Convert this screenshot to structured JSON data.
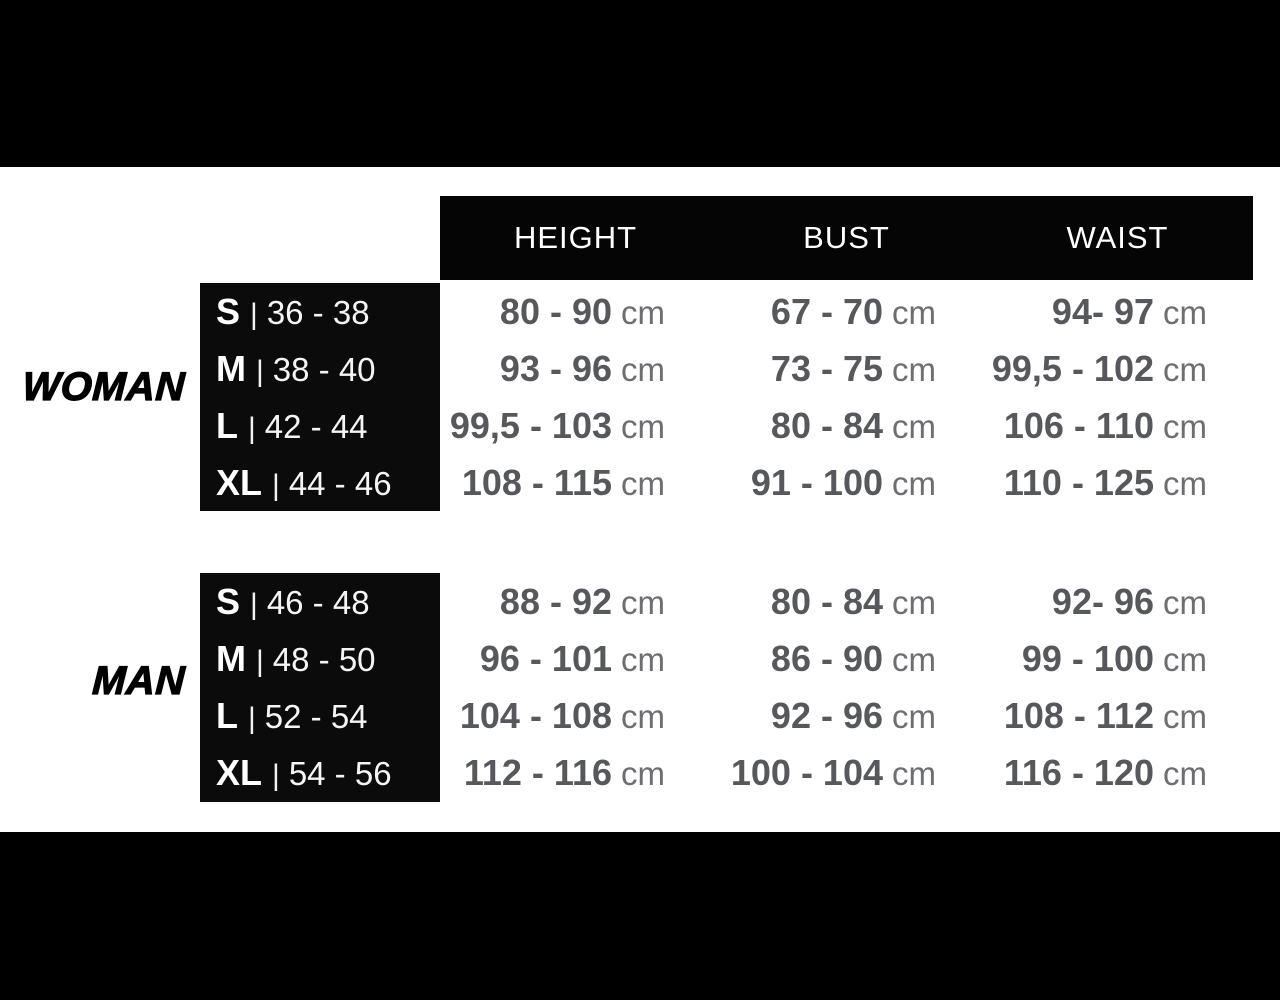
{
  "colors": {
    "bar_black": "#000000",
    "panel_black": "#0b0b0b",
    "value_gray": "#57585b",
    "unit_gray": "#6d6e71",
    "text_white": "#ffffff"
  },
  "separator": "|",
  "chart_data": {
    "type": "table",
    "title": "",
    "columns": [
      "HEIGHT",
      "BUST",
      "WAIST"
    ],
    "unit": "cm",
    "groups": [
      {
        "label": "WOMAN",
        "rows": [
          {
            "size": "S",
            "eu_range": "36 - 38",
            "height": "80 - 90",
            "bust": "67 - 70",
            "waist": "94- 97"
          },
          {
            "size": "M",
            "eu_range": "38 - 40",
            "height": "93 - 96",
            "bust": "73 - 75",
            "waist": "99,5 - 102"
          },
          {
            "size": "L",
            "eu_range": "42 - 44",
            "height": "99,5 - 103",
            "bust": "80 - 84",
            "waist": "106 - 110"
          },
          {
            "size": "XL",
            "eu_range": "44 - 46",
            "height": "108 - 115",
            "bust": "91 - 100",
            "waist": "110 - 125"
          }
        ]
      },
      {
        "label": "MAN",
        "rows": [
          {
            "size": "S",
            "eu_range": "46 - 48",
            "height": "88 - 92",
            "bust": "80 - 84",
            "waist": "92- 96"
          },
          {
            "size": "M",
            "eu_range": "48 - 50",
            "height": "96 - 101",
            "bust": "86 - 90",
            "waist": "99 - 100"
          },
          {
            "size": "L",
            "eu_range": "52 - 54",
            "height": "104 - 108",
            "bust": "92 - 96",
            "waist": "108 - 112"
          },
          {
            "size": "XL",
            "eu_range": "54 - 56",
            "height": "112 - 116",
            "bust": "100 - 104",
            "waist": "116 - 120"
          }
        ]
      }
    ]
  }
}
